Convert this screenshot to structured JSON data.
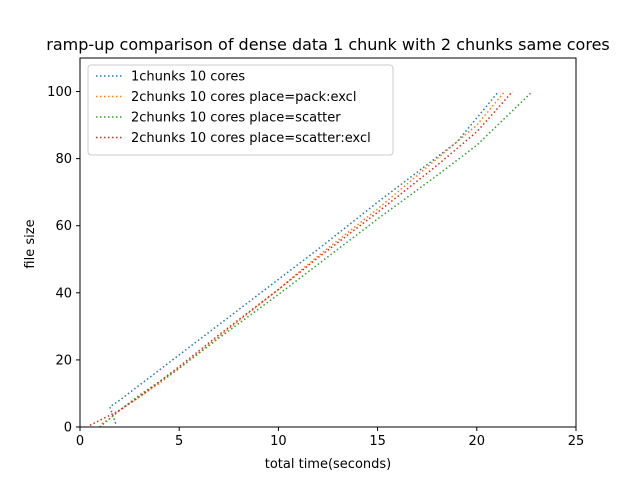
{
  "chart_data": {
    "type": "line",
    "title": "ramp-up comparison of dense data 1 chunk with 2 chunks same cores",
    "xlabel": "total time(seconds)",
    "ylabel": "file size",
    "xlim": [
      0,
      25
    ],
    "ylim": [
      0,
      110
    ],
    "xticks": [
      0,
      5,
      10,
      15,
      20,
      25
    ],
    "yticks": [
      0,
      20,
      40,
      60,
      80,
      100
    ],
    "grid": false,
    "line_style": "dotted",
    "legend_position": "top-left",
    "series": [
      {
        "name": "1chunks 10 cores",
        "color": "#1f77b4",
        "x": [
          1.8,
          1.5,
          2.0,
          3.0,
          5.0,
          7.0,
          10.0,
          12.0,
          15.0,
          17.0,
          19.0,
          21.1
        ],
        "y": [
          1,
          6,
          8,
          12.5,
          21.5,
          30.5,
          44,
          53,
          67,
          76,
          85,
          100
        ]
      },
      {
        "name": "2chunks 10 cores place=pack:excl",
        "color": "#ff7f0e",
        "x": [
          1.1,
          1.5,
          2.0,
          3.0,
          4.0,
          5.0,
          7.0,
          10.0,
          12.0,
          15.0,
          18.0,
          20.0,
          21.4
        ],
        "y": [
          1,
          2.5,
          5,
          9,
          13,
          17.5,
          27,
          41,
          51,
          65,
          80,
          90,
          100
        ]
      },
      {
        "name": "2chunks 10 cores place=scatter",
        "color": "#2ca02c",
        "x": [
          1.0,
          1.5,
          2.0,
          3.0,
          4.0,
          5.0,
          7.0,
          10.0,
          12.0,
          15.0,
          18.0,
          20.0,
          22.8
        ],
        "y": [
          0,
          2.5,
          5,
          9.5,
          13.5,
          17.5,
          26.5,
          39.5,
          48.5,
          62,
          75,
          84,
          100
        ]
      },
      {
        "name": "2chunks 10 cores place=scatter:excl",
        "color": "#d62728",
        "x": [
          0.5,
          1.0,
          1.5,
          2.0,
          3.0,
          4.0,
          5.0,
          7.0,
          10.0,
          12.0,
          15.0,
          18.0,
          20.0,
          21.8
        ],
        "y": [
          0.5,
          2,
          3.5,
          5,
          9,
          13.5,
          18,
          27.5,
          41,
          50.5,
          64,
          78,
          88,
          100
        ]
      }
    ]
  }
}
